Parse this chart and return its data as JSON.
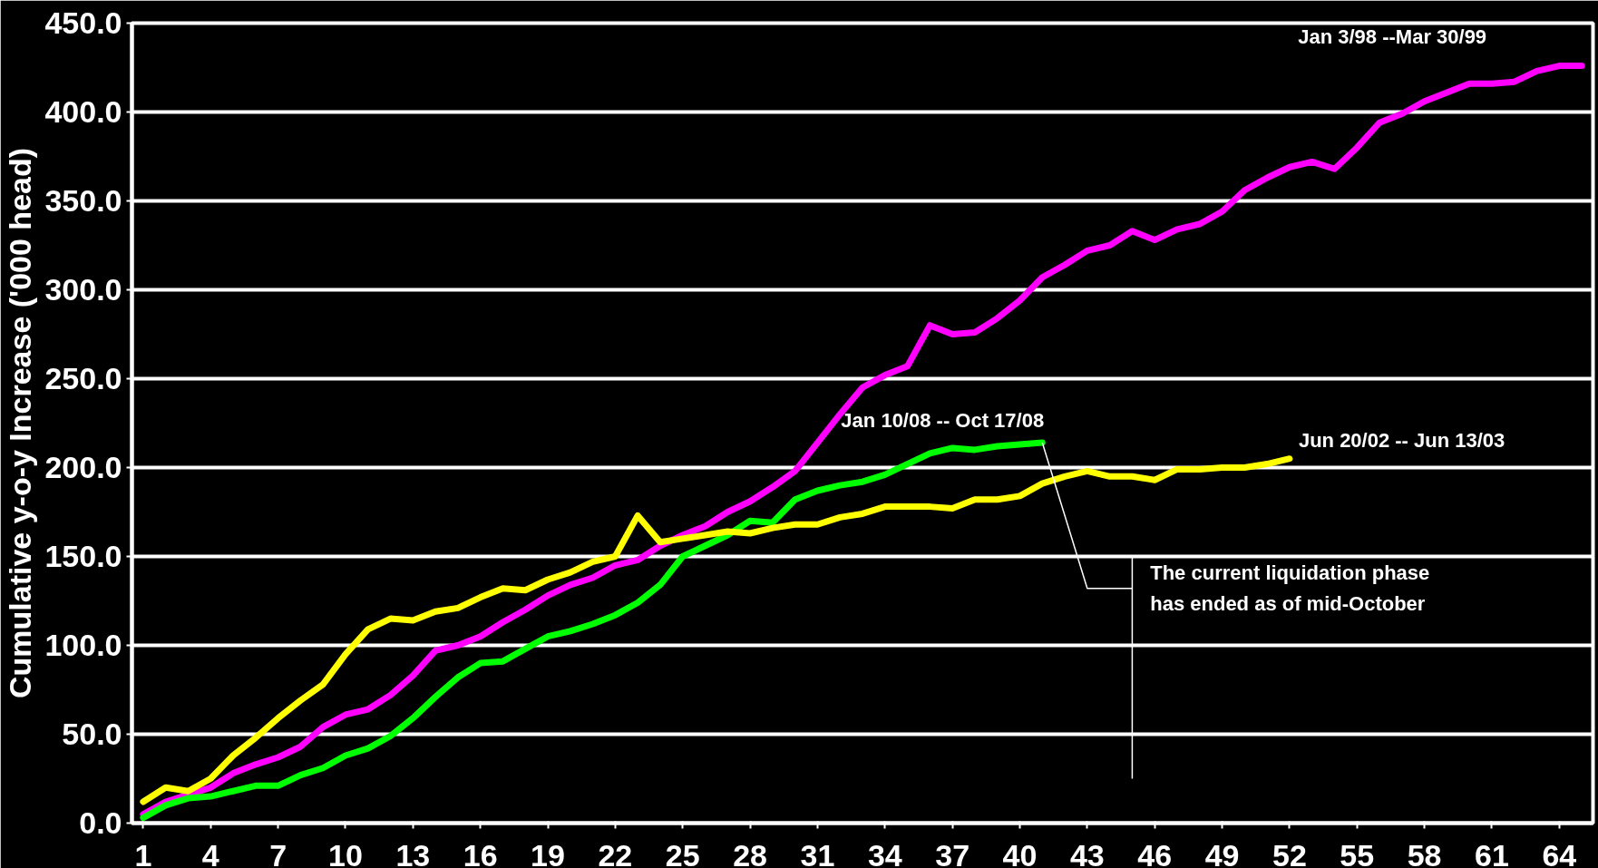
{
  "chart_data": {
    "type": "line",
    "ylabel": "Cumulative y-o-y Increase ('000 head)",
    "x": [
      1,
      2,
      3,
      4,
      5,
      6,
      7,
      8,
      9,
      10,
      11,
      12,
      13,
      14,
      15,
      16,
      17,
      18,
      19,
      20,
      21,
      22,
      23,
      24,
      25,
      26,
      27,
      28,
      29,
      30,
      31,
      32,
      33,
      34,
      35,
      36,
      37,
      38,
      39,
      40,
      41,
      42,
      43,
      44,
      45,
      46,
      47,
      48,
      49,
      50,
      51,
      52,
      53,
      54,
      55,
      56,
      57,
      58,
      59,
      60,
      61,
      62,
      63,
      64,
      65
    ],
    "series": [
      {
        "name": "Jan 3/98 --Mar 30/99",
        "color": "#ff00ff",
        "values": [
          5,
          12,
          16,
          20,
          28,
          33,
          37,
          43,
          54,
          61,
          64,
          72,
          83,
          97,
          100,
          105,
          113,
          120,
          128,
          134,
          138,
          145,
          148,
          156,
          162,
          167,
          175,
          181,
          189,
          198,
          214,
          230,
          245,
          252,
          257,
          280,
          275,
          276,
          284,
          294,
          307,
          314,
          322,
          325,
          333,
          328,
          334,
          337,
          344,
          356,
          363,
          369,
          372,
          368,
          380,
          394,
          399,
          406,
          411,
          416,
          416,
          417,
          423,
          426,
          426
        ]
      },
      {
        "name": "Jan  10/08 -- Oct 17/08",
        "color": "#00ff00",
        "values": [
          3,
          10,
          14,
          15,
          18,
          21,
          21,
          27,
          31,
          38,
          42,
          49,
          59,
          71,
          82,
          90,
          91,
          98,
          105,
          108,
          112,
          117,
          124,
          134,
          150,
          156,
          162,
          170,
          169,
          182,
          187,
          190,
          192,
          196,
          202,
          208,
          211,
          210,
          212,
          213,
          214,
          null,
          null,
          null,
          null,
          null,
          null,
          null,
          null,
          null,
          null,
          null,
          null,
          null,
          null,
          null,
          null,
          null,
          null,
          null,
          null,
          null,
          null,
          null,
          null
        ]
      },
      {
        "name": "Jun 20/02 -- Jun 13/03",
        "color": "#ffff00",
        "values": [
          12,
          20,
          18,
          25,
          38,
          48,
          59,
          69,
          78,
          95,
          109,
          115,
          114,
          119,
          121,
          127,
          132,
          131,
          137,
          141,
          147,
          150,
          173,
          158,
          160,
          162,
          164,
          163,
          166,
          168,
          168,
          172,
          174,
          178,
          178,
          178,
          177,
          182,
          182,
          184,
          191,
          195,
          198,
          195,
          195,
          193,
          199,
          199,
          200,
          200,
          202,
          205,
          null,
          null,
          null,
          null,
          null,
          null,
          null,
          null,
          null,
          null,
          null,
          null,
          null
        ]
      }
    ],
    "annotations": [
      {
        "text": "The current liquidation phase\nhas ended as of mid-October",
        "x": 41,
        "y": 214
      }
    ],
    "xlim": [
      0.5,
      65.5
    ],
    "ylim": [
      0,
      450
    ],
    "xticks": [
      1,
      4,
      7,
      10,
      13,
      16,
      19,
      22,
      25,
      28,
      31,
      34,
      37,
      40,
      43,
      46,
      49,
      52,
      55,
      58,
      61,
      64
    ],
    "yticks": [
      {
        "value": 0,
        "label": "0.0"
      },
      {
        "value": 50,
        "label": "50.0"
      },
      {
        "value": 100,
        "label": "100.0"
      },
      {
        "value": 150,
        "label": "150.0"
      },
      {
        "value": 200,
        "label": "200.0"
      },
      {
        "value": 250,
        "label": "250.0"
      },
      {
        "value": 300,
        "label": "300.0"
      },
      {
        "value": 350,
        "label": "350.0"
      },
      {
        "value": 400,
        "label": "400.0"
      },
      {
        "value": 450,
        "label": "450.0"
      }
    ],
    "grid": "y",
    "line_style": "solid"
  }
}
